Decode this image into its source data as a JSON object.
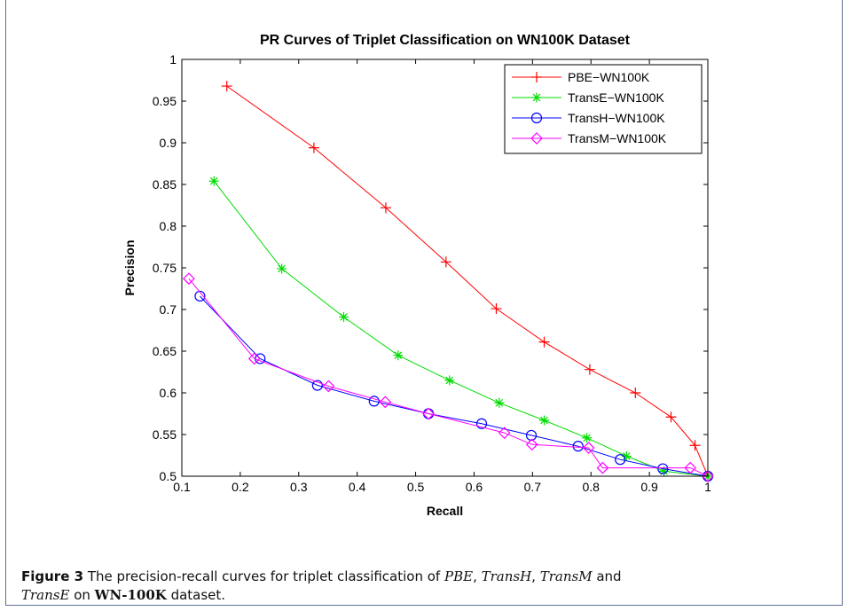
{
  "chart_data": {
    "type": "line",
    "title": "PR Curves of Triplet Classification on WN100K Dataset",
    "xlabel": "Recall",
    "ylabel": "Precision",
    "xlim": [
      0.1,
      1
    ],
    "ylim": [
      0.5,
      1
    ],
    "xticks": [
      "0.1",
      "0.2",
      "0.3",
      "0.4",
      "0.5",
      "0.6",
      "0.7",
      "0.8",
      "0.9",
      "1"
    ],
    "yticks": [
      "0.5",
      "0.55",
      "0.6",
      "0.65",
      "0.7",
      "0.75",
      "0.8",
      "0.85",
      "0.9",
      "0.95",
      "1"
    ],
    "grid": false,
    "legend_position": "top-right",
    "series": [
      {
        "name": "PBE−WN100K",
        "color": "#ff0000",
        "marker": "plus",
        "x": [
          0.177,
          0.326,
          0.449,
          0.552,
          0.638,
          0.72,
          0.798,
          0.876,
          0.937,
          0.978,
          1.0
        ],
        "y": [
          0.968,
          0.894,
          0.822,
          0.757,
          0.701,
          0.661,
          0.628,
          0.6,
          0.571,
          0.537,
          0.5
        ]
      },
      {
        "name": "TransE−WN100K",
        "color": "#00dd00",
        "marker": "star",
        "x": [
          0.155,
          0.271,
          0.377,
          0.47,
          0.558,
          0.643,
          0.72,
          0.793,
          0.861,
          0.925,
          1.0
        ],
        "y": [
          0.854,
          0.749,
          0.691,
          0.645,
          0.615,
          0.588,
          0.567,
          0.546,
          0.524,
          0.506,
          0.5
        ]
      },
      {
        "name": "TransH−WN100K",
        "color": "#0000ff",
        "marker": "circle",
        "x": [
          0.131,
          0.234,
          0.332,
          0.429,
          0.522,
          0.613,
          0.698,
          0.778,
          0.85,
          0.923,
          1.0
        ],
        "y": [
          0.716,
          0.641,
          0.609,
          0.59,
          0.575,
          0.563,
          0.549,
          0.536,
          0.52,
          0.509,
          0.5
        ]
      },
      {
        "name": "TransM−WN100K",
        "color": "#ff00ff",
        "marker": "diamond",
        "x": [
          0.112,
          0.224,
          0.351,
          0.448,
          0.522,
          0.652,
          0.699,
          0.796,
          0.82,
          0.97,
          1.0
        ],
        "y": [
          0.737,
          0.641,
          0.608,
          0.589,
          0.575,
          0.552,
          0.538,
          0.534,
          0.51,
          0.51,
          0.5
        ]
      }
    ]
  },
  "caption": {
    "label": "Figure 3",
    "text_1": " The precision-recall curves for triplet classification of ",
    "m1": "PBE",
    "sep1": ", ",
    "m2": "TransH",
    "sep2": ", ",
    "m3": "TransM",
    "text_2": " and",
    "m4": "TransE",
    "text_3": " on ",
    "dataset": "WN-100K",
    "text_4": " dataset."
  }
}
